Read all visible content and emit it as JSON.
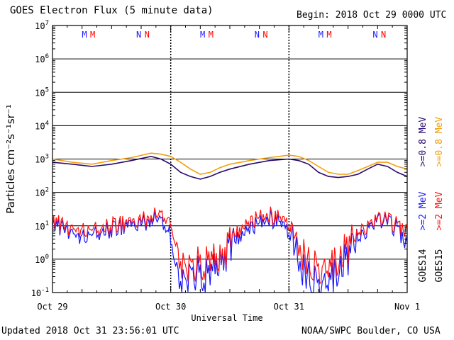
{
  "header": {
    "title": "GOES Electron Flux (5 minute data)",
    "begin": "Begin: 2018 Oct 29 0000 UTC"
  },
  "footer": {
    "updated": "Updated 2018 Oct 31 23:56:01 UTC",
    "credit": "NOAA/SWPC Boulder, CO USA"
  },
  "colors": {
    "goes14_low": "#2a0a6e",
    "goes15_low": "#f2a010",
    "goes14_high": "#1515ff",
    "goes15_high": "#ff1010",
    "marker_M_goes14": "#1a1aff",
    "marker_M_goes15": "#ff0000",
    "axis": "#000000"
  },
  "chart_data": {
    "type": "line",
    "title": "GOES Electron Flux (5 minute data)",
    "xlabel": "Universal Time",
    "ylabel": "Particles cm⁻²s⁻¹sr⁻¹",
    "yscale": "log",
    "ylim": [
      0.1,
      10000000
    ],
    "xlim": [
      "2018-10-29 00:00",
      "2018-11-01 00:00"
    ],
    "x_ticks": [
      "Oct 29",
      "Oct 30",
      "Oct 31",
      "Nov 1"
    ],
    "y_ticks": [
      {
        "base": "10",
        "exp": "7"
      },
      {
        "base": "10",
        "exp": "6"
      },
      {
        "base": "10",
        "exp": "5"
      },
      {
        "base": "10",
        "exp": "4"
      },
      {
        "base": "10",
        "exp": "3"
      },
      {
        "base": "10",
        "exp": "2"
      },
      {
        "base": "10",
        "exp": "1"
      },
      {
        "base": "10",
        "exp": "0"
      },
      {
        "base": "10",
        "exp": "-1"
      }
    ],
    "threshold": 1000,
    "grid": true,
    "legend_position": "right",
    "legend": {
      "goes14": "GOES14",
      "goes15": "GOES15",
      "low_energy": ">=0.8 MeV",
      "high_energy": ">=2 MeV"
    },
    "markers": [
      {
        "day": 0,
        "items": [
          "M",
          "M",
          "N",
          "N"
        ]
      },
      {
        "day": 1,
        "items": [
          "M",
          "M",
          "N",
          "N"
        ]
      },
      {
        "day": 2,
        "items": [
          "M",
          "M",
          "N",
          "N"
        ]
      }
    ],
    "series": [
      {
        "name": "GOES14 >=0.8 MeV",
        "color": "#2a0a6e",
        "x_hours": [
          0,
          4,
          8,
          12,
          16,
          20,
          22,
          24,
          26,
          28,
          30,
          32,
          34,
          36,
          40,
          44,
          48,
          50,
          52,
          54,
          56,
          58,
          60,
          62,
          64,
          66,
          68,
          70,
          72
        ],
        "values": [
          800,
          700,
          600,
          700,
          900,
          1200,
          1000,
          700,
          400,
          300,
          250,
          300,
          400,
          500,
          700,
          900,
          1000,
          900,
          700,
          400,
          300,
          280,
          300,
          350,
          500,
          700,
          600,
          400,
          300
        ]
      },
      {
        "name": "GOES15 >=0.8 MeV",
        "color": "#f2a010",
        "x_hours": [
          0,
          4,
          8,
          12,
          16,
          20,
          22,
          24,
          26,
          28,
          30,
          32,
          34,
          36,
          40,
          44,
          48,
          50,
          52,
          54,
          56,
          58,
          60,
          62,
          64,
          66,
          68,
          70,
          72
        ],
        "values": [
          1000,
          800,
          700,
          900,
          1100,
          1500,
          1400,
          1200,
          800,
          500,
          350,
          400,
          550,
          700,
          900,
          1100,
          1300,
          1200,
          900,
          600,
          400,
          350,
          350,
          450,
          600,
          800,
          800,
          600,
          500
        ]
      },
      {
        "name": "GOES14 >=2 MeV",
        "color": "#1515ff",
        "x_hours": [
          0,
          3,
          6,
          9,
          12,
          15,
          18,
          21,
          23,
          24,
          25,
          26,
          27,
          28,
          30,
          32,
          34,
          36,
          38,
          40,
          42,
          44,
          46,
          48,
          50,
          52,
          54,
          56,
          58,
          60,
          62,
          64,
          66,
          68,
          70,
          72
        ],
        "values": [
          10,
          8,
          5,
          6,
          8,
          10,
          12,
          16,
          10,
          2,
          0.5,
          0.2,
          0.2,
          0.3,
          0.5,
          0.3,
          0.8,
          2,
          5,
          8,
          12,
          18,
          12,
          6,
          1,
          0.3,
          0.2,
          0.3,
          0.5,
          1,
          3,
          8,
          18,
          12,
          8,
          3
        ]
      },
      {
        "name": "GOES15 >=2 MeV",
        "color": "#ff1010",
        "x_hours": [
          0,
          3,
          6,
          9,
          12,
          15,
          18,
          21,
          23,
          24,
          25,
          26,
          27,
          28,
          30,
          32,
          34,
          36,
          38,
          40,
          42,
          44,
          46,
          48,
          50,
          52,
          54,
          56,
          58,
          60,
          62,
          64,
          66,
          68,
          70,
          72
        ],
        "values": [
          12,
          10,
          8,
          8,
          10,
          12,
          15,
          20,
          18,
          8,
          2,
          0.8,
          0.5,
          0.5,
          1,
          0.8,
          1,
          3,
          8,
          12,
          18,
          22,
          16,
          10,
          3,
          0.8,
          0.6,
          0.8,
          1,
          2,
          5,
          10,
          20,
          14,
          10,
          8
        ]
      }
    ]
  }
}
